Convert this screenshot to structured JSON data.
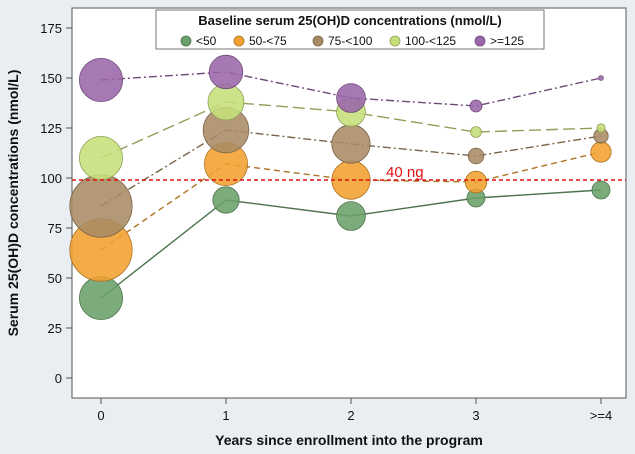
{
  "chart_data": {
    "type": "scatter",
    "title": "Baseline serum 25(OH)D concentrations (nmol/L)",
    "xlabel": "Years since enrollment into the program",
    "ylabel": "Serum 25(OH)D concentrations (nmol/L)",
    "categories": [
      "0",
      "1",
      "2",
      "3",
      ">=4"
    ],
    "y_ticks": [
      0,
      25,
      50,
      75,
      100,
      125,
      150,
      175
    ],
    "ylim": [
      -10,
      185
    ],
    "reference_line": {
      "value": 99,
      "label": "40 ng",
      "color": "#dd1111"
    },
    "legend_position": "top",
    "series": [
      {
        "name": "<50",
        "color": "#6aa06a",
        "dash": "solid",
        "values": [
          40,
          89,
          81,
          90,
          94
        ],
        "marker_size": [
          1.8,
          1.1,
          1.2,
          0.75,
          0.75
        ]
      },
      {
        "name": "50-<75",
        "color": "#f2a030",
        "dash": "dashed",
        "values": [
          64,
          107,
          99,
          98,
          113
        ],
        "marker_size": [
          2.6,
          1.8,
          1.6,
          0.9,
          0.85
        ]
      },
      {
        "name": "75-<100",
        "color": "#a88b64",
        "dash": "dashdot",
        "values": [
          86,
          124,
          117,
          111,
          121
        ],
        "marker_size": [
          2.6,
          1.9,
          1.6,
          0.65,
          0.6
        ]
      },
      {
        "name": "100-<125",
        "color": "#c6df7a",
        "dash": "longdash",
        "values": [
          110,
          138,
          133,
          123,
          125
        ],
        "marker_size": [
          1.8,
          1.5,
          1.2,
          0.45,
          0.35
        ]
      },
      {
        "name": ">=125",
        "color": "#9a66aa",
        "dash": "dashdot",
        "values": [
          149,
          153,
          140,
          136,
          150
        ],
        "marker_size": [
          1.8,
          1.4,
          1.2,
          0.5,
          0.2
        ]
      }
    ]
  }
}
